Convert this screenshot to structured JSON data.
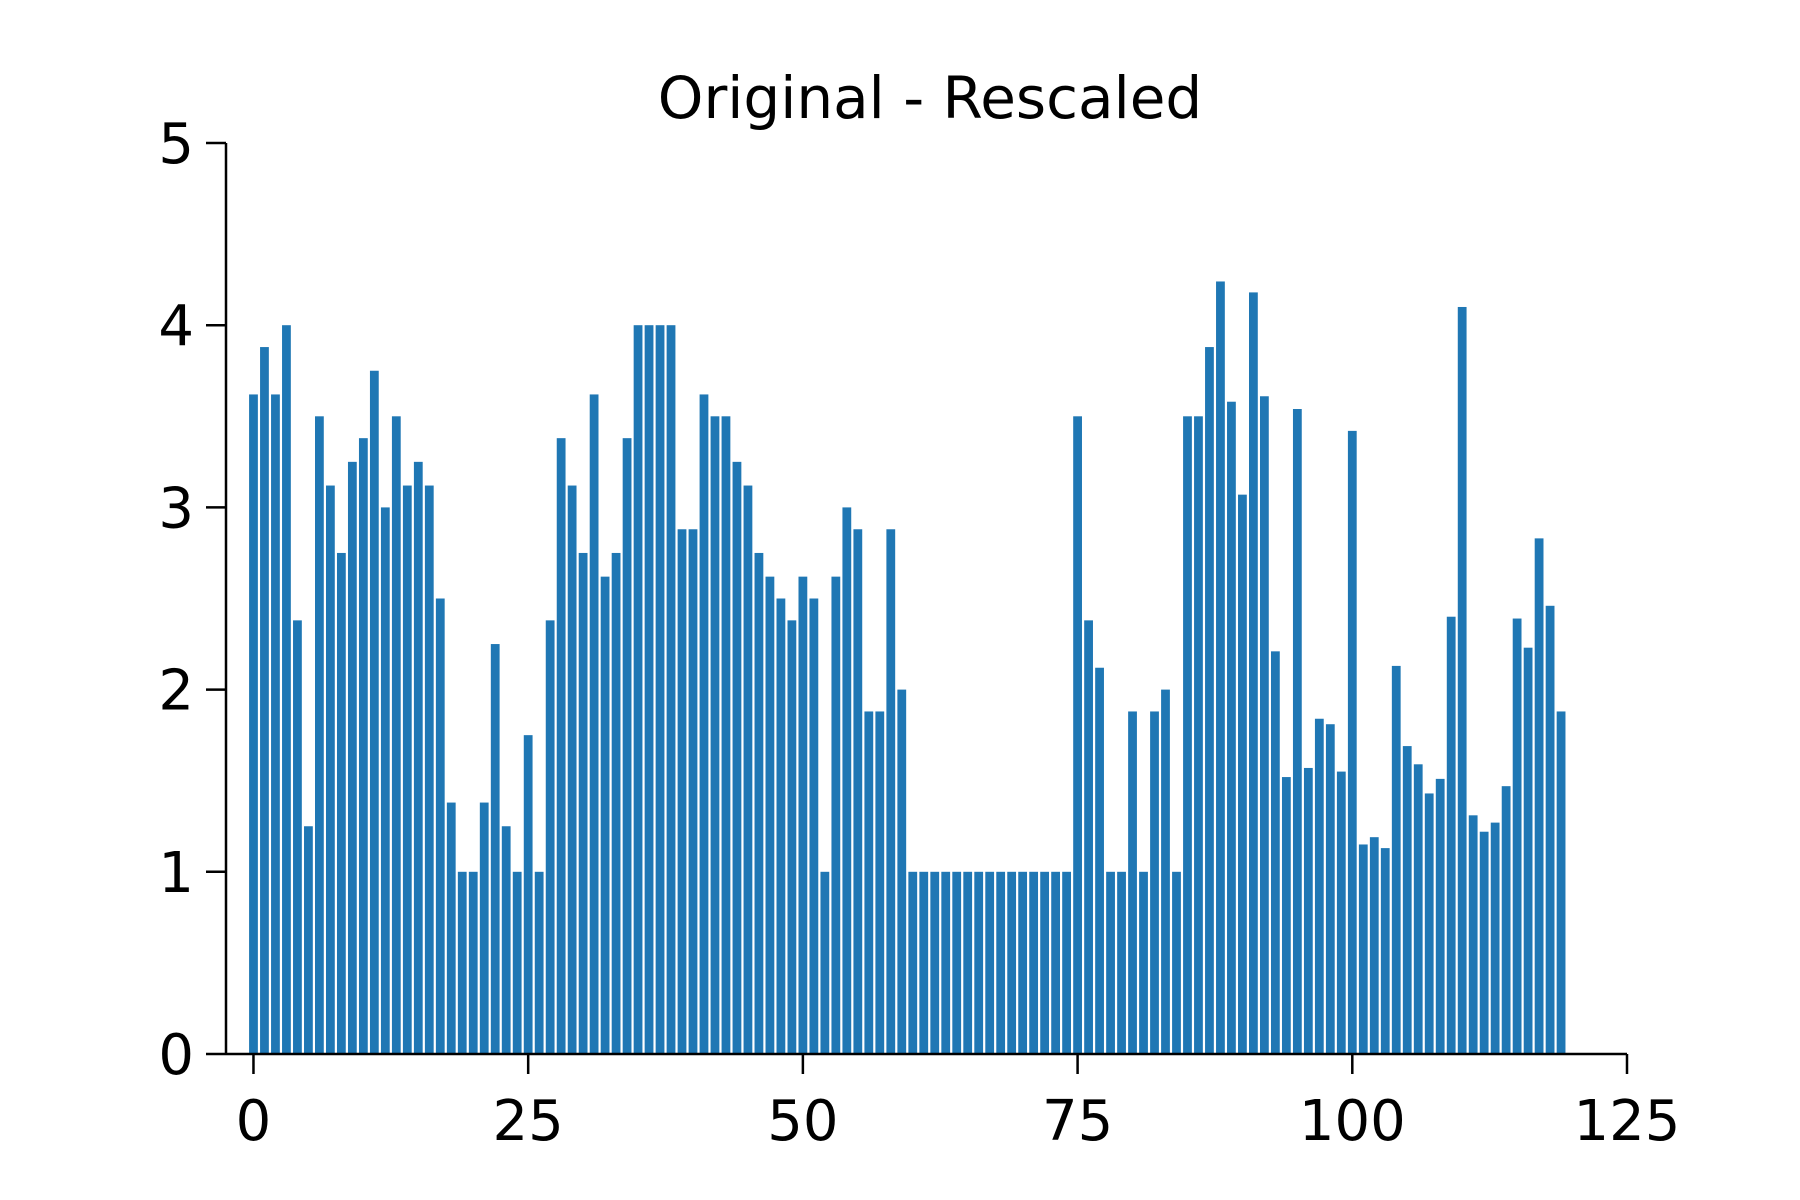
{
  "chart_data": {
    "type": "bar",
    "title": "Original - Rescaled",
    "xlabel": "",
    "ylabel": "",
    "xlim": [
      -2.5,
      125
    ],
    "ylim": [
      0,
      5
    ],
    "xticks": [
      0,
      25,
      50,
      75,
      100,
      125
    ],
    "yticks": [
      0,
      1,
      2,
      3,
      4,
      5
    ],
    "grid": false,
    "bar_color": "#1f77b4",
    "x": [
      0,
      1,
      2,
      3,
      4,
      5,
      6,
      7,
      8,
      9,
      10,
      11,
      12,
      13,
      14,
      15,
      16,
      17,
      18,
      19,
      20,
      21,
      22,
      23,
      24,
      25,
      26,
      27,
      28,
      29,
      30,
      31,
      32,
      33,
      34,
      35,
      36,
      37,
      38,
      39,
      40,
      41,
      42,
      43,
      44,
      45,
      46,
      47,
      48,
      49,
      50,
      51,
      52,
      53,
      54,
      55,
      56,
      57,
      58,
      59,
      60,
      61,
      62,
      63,
      64,
      65,
      66,
      67,
      68,
      69,
      70,
      71,
      72,
      73,
      74,
      75,
      76,
      77,
      78,
      79,
      80,
      81,
      82,
      83,
      84,
      85,
      86,
      87,
      88,
      89,
      90,
      91,
      92,
      93,
      94,
      95,
      96,
      97,
      98,
      99,
      100,
      101,
      102,
      103,
      104,
      105,
      106,
      107,
      108,
      109,
      110,
      111,
      112,
      113,
      114,
      115,
      116,
      117,
      118,
      119
    ],
    "values": [
      3.62,
      3.88,
      3.62,
      4.0,
      2.38,
      1.25,
      3.5,
      3.12,
      2.75,
      3.25,
      3.38,
      3.75,
      3.0,
      3.5,
      3.12,
      3.25,
      3.12,
      2.5,
      1.38,
      1.0,
      1.0,
      1.38,
      2.25,
      1.25,
      1.0,
      1.75,
      1.0,
      2.38,
      3.38,
      3.12,
      2.75,
      3.62,
      2.62,
      2.75,
      3.38,
      4.0,
      4.0,
      4.0,
      4.0,
      2.88,
      2.88,
      3.62,
      3.5,
      3.5,
      3.25,
      3.12,
      2.75,
      2.62,
      2.5,
      2.38,
      2.62,
      2.5,
      1.0,
      2.62,
      3.0,
      2.88,
      1.88,
      1.88,
      2.88,
      2.0,
      1.0,
      1.0,
      1.0,
      1.0,
      1.0,
      1.0,
      1.0,
      1.0,
      1.0,
      1.0,
      1.0,
      1.0,
      1.0,
      1.0,
      1.0,
      3.5,
      2.38,
      2.12,
      1.0,
      1.0,
      1.88,
      1.0,
      1.88,
      2.0,
      1.0,
      3.5,
      3.5,
      3.88,
      4.24,
      3.58,
      3.07,
      4.18,
      3.61,
      2.21,
      1.52,
      3.54,
      1.57,
      1.84,
      1.81,
      1.55,
      3.42,
      1.15,
      1.19,
      1.13,
      2.13,
      1.69,
      1.59,
      1.43,
      1.51,
      2.4,
      4.1,
      1.31,
      1.22,
      1.27,
      1.47,
      2.39,
      2.23,
      2.83,
      2.46,
      1.88
    ]
  }
}
